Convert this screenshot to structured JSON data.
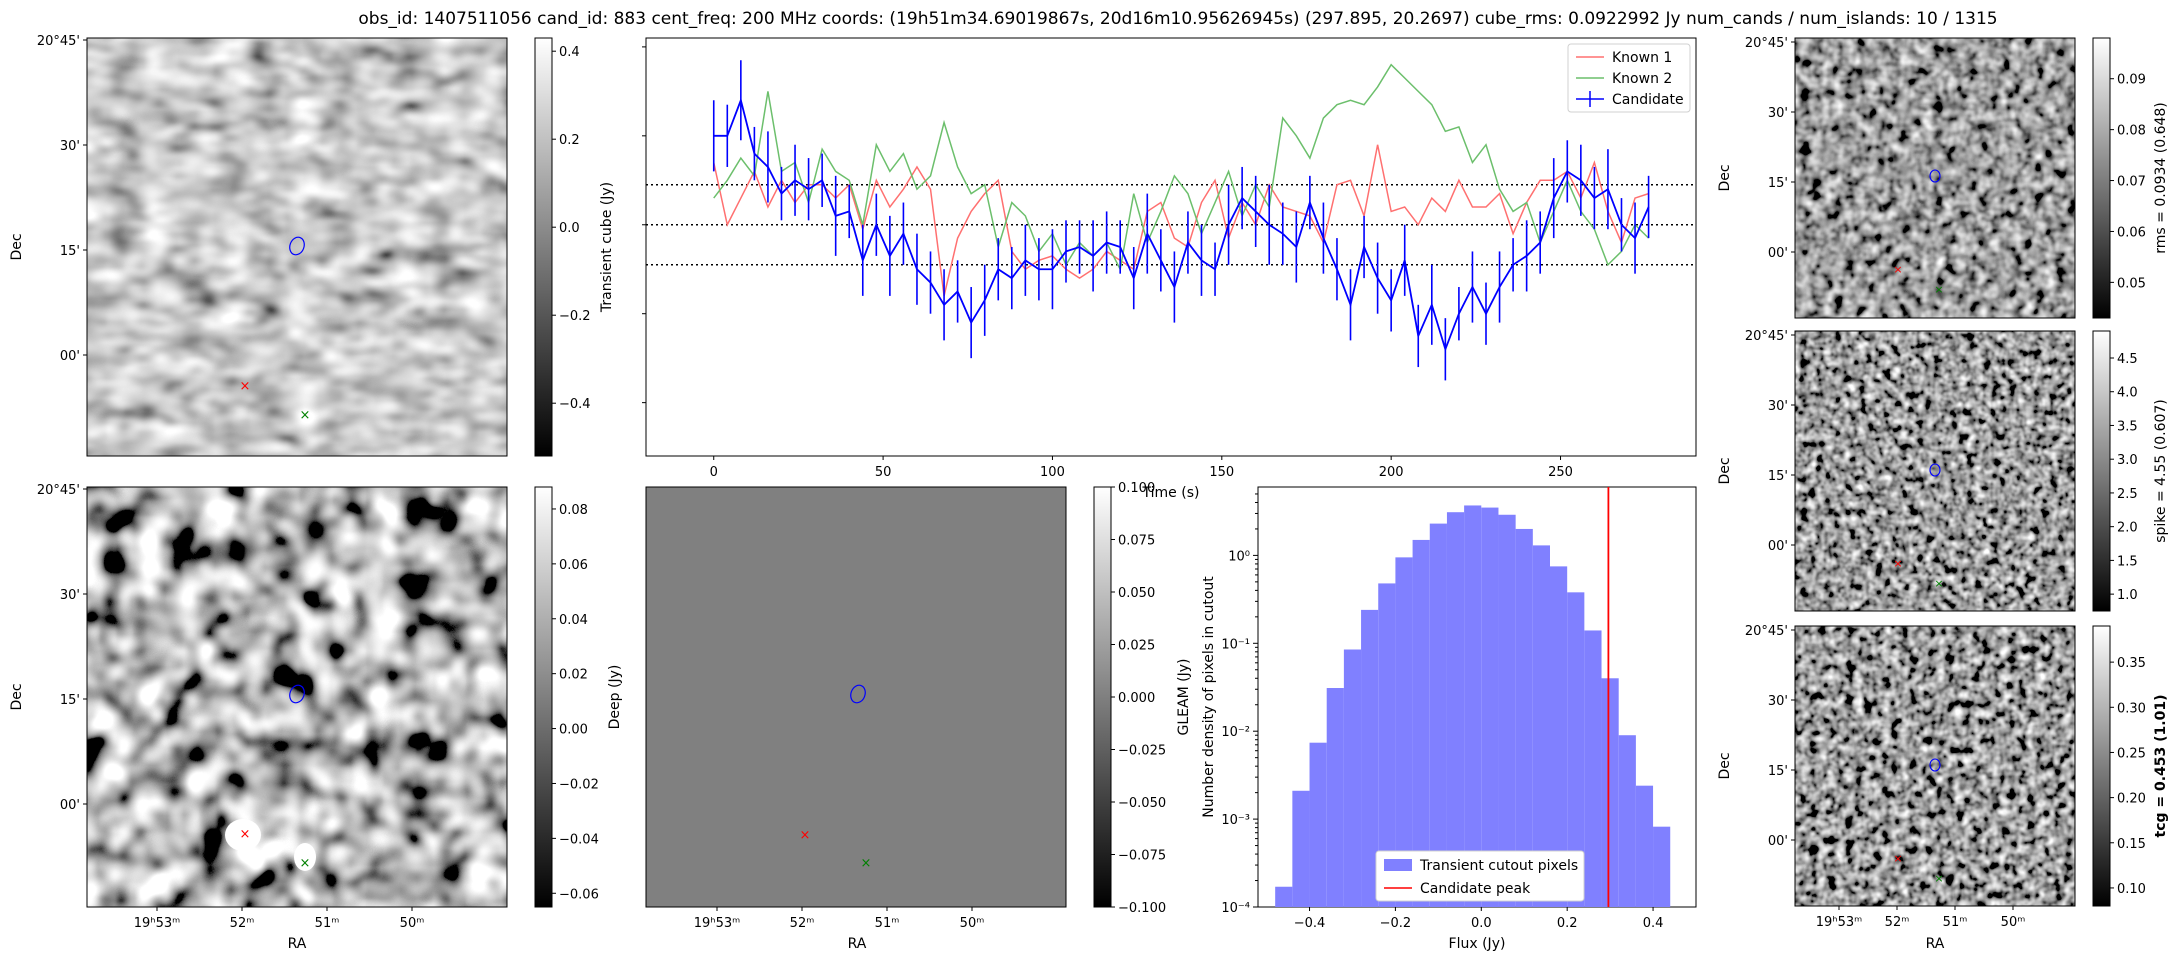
{
  "title": "obs_id: 1407511056 cand_id: 883 cent_freq: 200 MHz coords: (19h51m34.69019867s, 20d16m10.95626945s) (297.895, 20.2697) cube_rms: 0.0922992 Jy num_cands / num_islands: 10 / 1315",
  "sky": {
    "dec_ticks": [
      "20°45'",
      "30'",
      "15'",
      "00'"
    ],
    "ra_ticks": [
      "19ʰ53ᵐ",
      "52ᵐ",
      "51ᵐ",
      "50ᵐ"
    ],
    "dec_label": "Dec",
    "ra_label": "RA"
  },
  "colors": {
    "candidate": "#0000ff",
    "known1": "#ff7070",
    "known2": "#6cbf6c",
    "peak": "#ff0000",
    "hist": "#8080ff",
    "red_marker": "#ff0000",
    "green_marker": "#008000"
  },
  "colorbars": {
    "transient": {
      "label": "Transient cube (Jy)",
      "ticks": [
        "0.4",
        "0.2",
        "0.0",
        "−0.2",
        "−0.4"
      ]
    },
    "deep": {
      "label": "Deep (Jy)",
      "ticks": [
        "0.08",
        "0.06",
        "0.04",
        "0.02",
        "0.00",
        "−0.02",
        "−0.04",
        "−0.06"
      ]
    },
    "gleam": {
      "label": "GLEAM (Jy)",
      "ticks": [
        "0.100",
        "0.075",
        "0.050",
        "0.025",
        "0.000",
        "−0.025",
        "−0.050",
        "−0.075",
        "−0.100"
      ]
    },
    "rms": {
      "label": "rms = 0.0934 (0.648)",
      "ticks": [
        "0.09",
        "0.08",
        "0.07",
        "0.06",
        "0.05"
      ]
    },
    "spike": {
      "label": "spike = 4.55 (0.607)",
      "ticks": [
        "4.5",
        "4.0",
        "3.5",
        "3.0",
        "2.5",
        "2.0",
        "1.5",
        "1.0"
      ]
    },
    "tcg": {
      "label": "tcg = 0.453 (1.01)",
      "ticks": [
        "0.35",
        "0.30",
        "0.25",
        "0.20",
        "0.15",
        "0.10"
      ]
    }
  },
  "chart_data": [
    {
      "type": "line",
      "name": "lightcurve",
      "xlabel": "Time (s)",
      "ylabel": "",
      "x_ticks": [
        "0",
        "50",
        "100",
        "150",
        "200",
        "250"
      ],
      "xlim": [
        -20,
        290
      ],
      "ylim": [
        -0.52,
        0.42
      ],
      "hlines": [
        0.09,
        0,
        -0.09
      ],
      "legend": {
        "position": "top-right",
        "entries": [
          "Known 1",
          "Known 2",
          "Candidate"
        ]
      },
      "time": [
        0,
        4,
        8,
        12,
        16,
        20,
        24,
        28,
        32,
        36,
        40,
        44,
        48,
        52,
        56,
        60,
        64,
        68,
        72,
        76,
        80,
        84,
        88,
        92,
        96,
        100,
        104,
        108,
        112,
        116,
        120,
        124,
        128,
        132,
        136,
        140,
        144,
        148,
        152,
        156,
        160,
        164,
        168,
        172,
        176,
        180,
        184,
        188,
        192,
        196,
        200,
        204,
        208,
        212,
        216,
        220,
        224,
        228,
        232,
        236,
        240,
        244,
        248,
        252,
        256,
        260,
        264,
        268,
        272,
        276
      ],
      "series": [
        {
          "name": "Known 1",
          "values": [
            0.14,
            0.0,
            0.06,
            0.12,
            0.04,
            0.1,
            0.05,
            0.09,
            0.09,
            0.06,
            0.09,
            -0.01,
            0.1,
            0.04,
            0.08,
            0.13,
            0.08,
            -0.16,
            -0.03,
            0.03,
            0.07,
            0.1,
            -0.06,
            -0.1,
            -0.08,
            -0.07,
            -0.1,
            -0.12,
            -0.1,
            -0.06,
            -0.08,
            -0.1,
            0.03,
            0.05,
            -0.03,
            -0.05,
            0.05,
            0.1,
            -0.03,
            0.05,
            0.0,
            0.09,
            0.04,
            0.03,
            0.02,
            -0.04,
            0.09,
            0.1,
            0.02,
            0.18,
            0.03,
            0.04,
            0.0,
            0.06,
            0.03,
            0.1,
            0.04,
            0.04,
            0.07,
            -0.02,
            0.05,
            0.1,
            0.1,
            0.12,
            0.06,
            0.14,
            0.03,
            -0.04,
            0.06,
            0.07
          ]
        },
        {
          "name": "Known 2",
          "values": [
            0.06,
            0.1,
            0.15,
            0.11,
            0.3,
            0.12,
            0.14,
            0.05,
            0.17,
            0.12,
            0.1,
            0.0,
            0.18,
            0.12,
            0.16,
            0.08,
            0.11,
            0.23,
            0.13,
            0.07,
            0.09,
            -0.05,
            0.05,
            0.02,
            -0.06,
            -0.02,
            -0.09,
            -0.04,
            -0.07,
            -0.04,
            -0.1,
            0.07,
            -0.04,
            0.03,
            0.11,
            0.07,
            -0.02,
            0.05,
            0.12,
            0.02,
            0.09,
            0.04,
            0.24,
            0.2,
            0.15,
            0.24,
            0.27,
            0.28,
            0.27,
            0.31,
            0.36,
            0.33,
            0.3,
            0.27,
            0.21,
            0.22,
            0.14,
            0.18,
            0.08,
            0.03,
            0.05,
            -0.04,
            0.03,
            0.1,
            0.03,
            -0.01,
            -0.09,
            -0.06,
            0.0,
            -0.03
          ]
        },
        {
          "name": "Candidate",
          "values": [
            0.2,
            0.2,
            0.28,
            0.16,
            0.13,
            0.07,
            0.1,
            0.08,
            0.1,
            0.02,
            0.03,
            -0.08,
            0.0,
            -0.07,
            -0.02,
            -0.1,
            -0.13,
            -0.18,
            -0.15,
            -0.22,
            -0.17,
            -0.1,
            -0.12,
            -0.08,
            -0.1,
            -0.1,
            -0.06,
            -0.05,
            -0.07,
            -0.04,
            -0.05,
            -0.12,
            -0.02,
            -0.08,
            -0.14,
            -0.04,
            -0.08,
            -0.1,
            0.0,
            0.06,
            0.03,
            0.0,
            -0.02,
            -0.05,
            0.05,
            -0.03,
            -0.1,
            -0.18,
            -0.05,
            -0.12,
            -0.17,
            -0.08,
            -0.25,
            -0.18,
            -0.28,
            -0.2,
            -0.14,
            -0.2,
            -0.14,
            -0.09,
            -0.07,
            -0.04,
            0.06,
            0.12,
            0.1,
            0.06,
            0.08,
            0.0,
            -0.03,
            0.04
          ],
          "errors": [
            0.08,
            0.07,
            0.09,
            0.06,
            0.08,
            0.06,
            0.08,
            0.07,
            0.06,
            0.09,
            0.06,
            0.08,
            0.07,
            0.09,
            0.07,
            0.08,
            0.07,
            0.08,
            0.07,
            0.08,
            0.08,
            0.07,
            0.07,
            0.08,
            0.07,
            0.09,
            0.07,
            0.06,
            0.08,
            0.07,
            0.06,
            0.07,
            0.09,
            0.07,
            0.08,
            0.07,
            0.08,
            0.06,
            0.09,
            0.07,
            0.08,
            0.09,
            0.07,
            0.08,
            0.06,
            0.08,
            0.07,
            0.08,
            0.07,
            0.08,
            0.07,
            0.08,
            0.07,
            0.09,
            0.07,
            0.06,
            0.08,
            0.07,
            0.08,
            0.06,
            0.08,
            0.07,
            0.09,
            0.07,
            0.08,
            0.07,
            0.09,
            0.06,
            0.08,
            0.07
          ]
        }
      ]
    },
    {
      "type": "bar",
      "name": "histogram",
      "title": "",
      "xlabel": "Flux (Jy)",
      "ylabel": "Number density of pixels in cutout",
      "x_ticks": [
        "−0.4",
        "−0.2",
        "0.0",
        "0.2",
        "0.4"
      ],
      "y_scale": "log",
      "y_ticks": [
        "10⁰",
        "10⁻¹",
        "10⁻²",
        "10⁻³",
        "10⁻⁴"
      ],
      "xlim": [
        -0.52,
        0.5
      ],
      "ylim": [
        0.0001,
        6.0
      ],
      "bin_edges": [
        -0.48,
        -0.44,
        -0.4,
        -0.36,
        -0.32,
        -0.28,
        -0.24,
        -0.2,
        -0.16,
        -0.12,
        -0.08,
        -0.04,
        0.0,
        0.04,
        0.08,
        0.12,
        0.16,
        0.2,
        0.24,
        0.28,
        0.32,
        0.36,
        0.4,
        0.44
      ],
      "values": [
        0.00017,
        0.0021,
        0.0074,
        0.031,
        0.085,
        0.24,
        0.48,
        0.95,
        1.5,
        2.3,
        3.1,
        3.7,
        3.5,
        2.9,
        2.0,
        1.3,
        0.75,
        0.38,
        0.14,
        0.04,
        0.009,
        0.0024,
        0.00082
      ],
      "peak": 0.296,
      "legend": {
        "position": "bottom-center",
        "entries": [
          "Transient cutout pixels",
          "Candidate peak"
        ]
      }
    }
  ]
}
